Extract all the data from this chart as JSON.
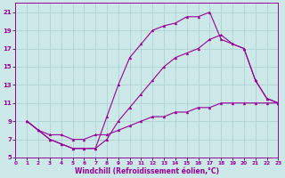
{
  "xlabel": "Windchill (Refroidissement éolien,°C)",
  "xlim": [
    0,
    23
  ],
  "ylim": [
    5,
    22
  ],
  "xticks": [
    0,
    1,
    2,
    3,
    4,
    5,
    6,
    7,
    8,
    9,
    10,
    11,
    12,
    13,
    14,
    15,
    16,
    17,
    18,
    19,
    20,
    21,
    22,
    23
  ],
  "yticks": [
    5,
    7,
    9,
    11,
    13,
    15,
    17,
    19,
    21
  ],
  "bg_color": "#cce8e8",
  "grid_color": "#aacece",
  "line_color": "#990099",
  "line1_x": [
    1,
    2,
    3,
    4,
    5,
    6,
    7,
    8,
    9,
    10,
    11,
    12,
    13,
    14,
    15,
    16,
    17,
    18,
    19,
    20,
    21,
    22,
    23
  ],
  "line1_y": [
    9.0,
    8.0,
    7.0,
    6.5,
    6.0,
    6.0,
    6.0,
    9.5,
    13.0,
    16.0,
    17.5,
    19.0,
    19.5,
    19.8,
    20.5,
    20.5,
    21.0,
    18.0,
    17.5,
    17.0,
    13.5,
    11.5,
    11.0
  ],
  "line2_x": [
    1,
    2,
    3,
    4,
    5,
    6,
    7,
    8,
    9,
    10,
    11,
    12,
    13,
    14,
    15,
    16,
    17,
    18,
    19,
    20,
    21,
    22,
    23
  ],
  "line2_y": [
    9.0,
    8.0,
    7.0,
    6.5,
    6.0,
    6.0,
    6.0,
    7.0,
    9.0,
    10.5,
    12.0,
    13.5,
    15.0,
    16.0,
    16.5,
    17.0,
    18.0,
    18.5,
    17.5,
    17.0,
    13.5,
    11.5,
    11.0
  ],
  "line3_x": [
    1,
    2,
    3,
    4,
    5,
    6,
    7,
    8,
    9,
    10,
    11,
    12,
    13,
    14,
    15,
    16,
    17,
    18,
    19,
    20,
    21,
    22,
    23
  ],
  "line3_y": [
    9.0,
    8.0,
    7.5,
    7.5,
    7.0,
    7.0,
    7.5,
    7.5,
    8.0,
    8.5,
    9.0,
    9.5,
    9.5,
    10.0,
    10.0,
    10.5,
    10.5,
    11.0,
    11.0,
    11.0,
    11.0,
    11.0,
    11.0
  ]
}
